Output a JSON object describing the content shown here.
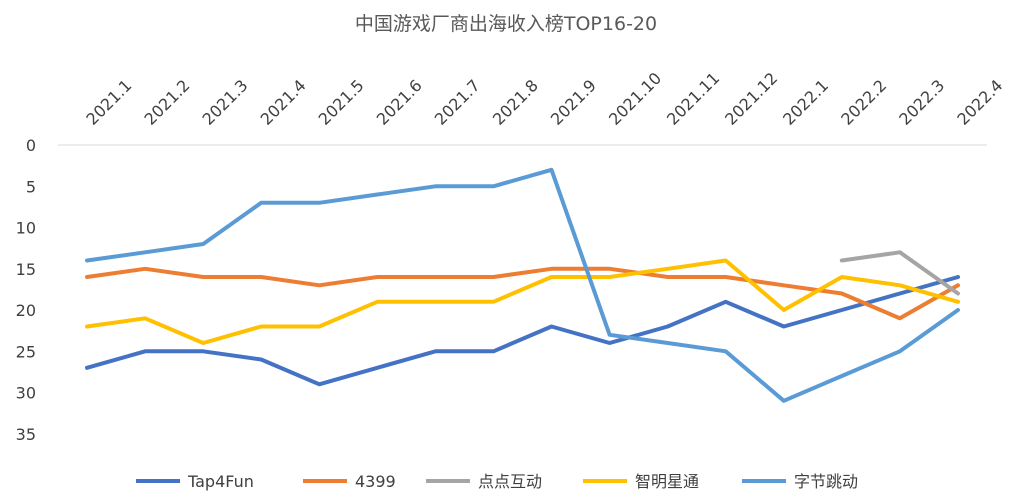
{
  "chart_data": {
    "type": "line",
    "title": "中国游戏厂商出海收入榜TOP16-20",
    "categories": [
      "2021.1",
      "2021.2",
      "2021.3",
      "2021.4",
      "2021.5",
      "2021.6",
      "2021.7",
      "2021.8",
      "2021.9",
      "2021.10",
      "2021.11",
      "2021.12",
      "2022.1",
      "2022.2",
      "2022.3",
      "2022.4"
    ],
    "y_ticks": [
      "0",
      "5",
      "10",
      "15",
      "20",
      "25",
      "30",
      "35"
    ],
    "ylim": [
      0,
      35
    ],
    "y_reversed": true,
    "x_axis_position": "top",
    "grid": false,
    "legend_position": "bottom",
    "series": [
      {
        "name": "Tap4Fun",
        "color": "#4472C4",
        "values": [
          27,
          25,
          25,
          26,
          29,
          27,
          25,
          25,
          22,
          24,
          22,
          19,
          22,
          20,
          18,
          16
        ]
      },
      {
        "name": "4399",
        "color": "#ED7D31",
        "values": [
          16,
          15,
          16,
          16,
          17,
          16,
          16,
          16,
          15,
          15,
          16,
          16,
          17,
          18,
          21,
          17
        ]
      },
      {
        "name": "点点互动",
        "color": "#A5A5A5",
        "values": [
          null,
          null,
          null,
          null,
          null,
          null,
          null,
          null,
          null,
          null,
          null,
          null,
          null,
          14,
          13,
          18
        ]
      },
      {
        "name": "智明星通",
        "color": "#FFC000",
        "values": [
          22,
          21,
          24,
          22,
          22,
          19,
          19,
          19,
          16,
          16,
          15,
          14,
          20,
          16,
          17,
          19
        ]
      },
      {
        "name": "字节跳动",
        "color": "#5B9BD5",
        "values": [
          14,
          13,
          12,
          7,
          7,
          6,
          5,
          5,
          3,
          23,
          24,
          25,
          31,
          28,
          25,
          20
        ]
      }
    ]
  }
}
